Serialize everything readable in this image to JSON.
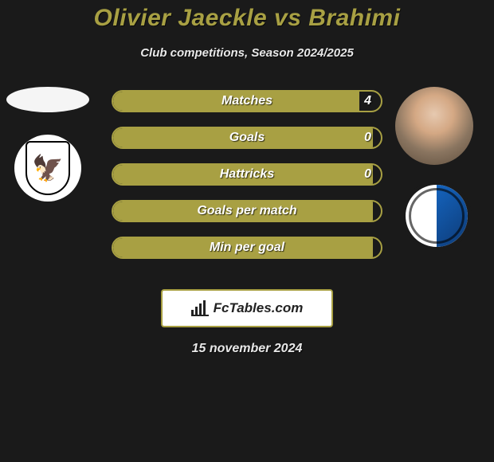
{
  "header": {
    "title": "Olivier Jaeckle vs Brahimi",
    "subtitle": "Club competitions, Season 2024/2025"
  },
  "colors": {
    "accent": "#a8a043",
    "background": "#1a1a1a",
    "text": "#ffffff"
  },
  "stats": [
    {
      "label": "Matches",
      "value": "4",
      "fill_pct": 92
    },
    {
      "label": "Goals",
      "value": "0",
      "fill_pct": 97
    },
    {
      "label": "Hattricks",
      "value": "0",
      "fill_pct": 97
    },
    {
      "label": "Goals per match",
      "value": "",
      "fill_pct": 97
    },
    {
      "label": "Min per goal",
      "value": "",
      "fill_pct": 97
    }
  ],
  "branding": {
    "site_name": "FcTables.com"
  },
  "date": "15 november 2024",
  "left": {
    "player_photo_placeholder": true,
    "club": "FC Aarau"
  },
  "right": {
    "player_photo_present": true,
    "club": "FC Wil 1900"
  }
}
